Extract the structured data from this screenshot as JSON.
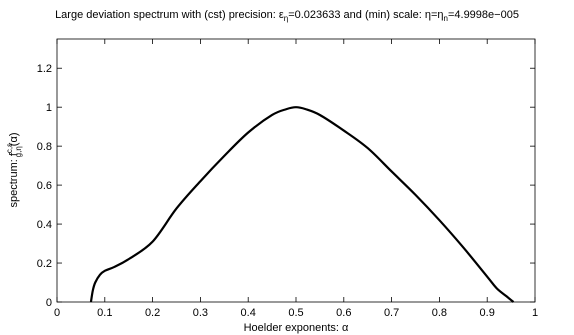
{
  "chart_data": {
    "type": "line",
    "title": {
      "prefix": "Large deviation spectrum with (cst) precision: ε",
      "eps_sub": "η",
      "mid": "=0.023633 and (min) scale: η=η",
      "eta_sub": "n",
      "suffix": "=4.9998e−005"
    },
    "xlabel": "Hoelder exponents: α",
    "ylabel": {
      "prefix": "spectrum: f",
      "sup": "c,ε",
      "sub": "g,η",
      "suffix": "(α)"
    },
    "xlim": [
      0,
      1
    ],
    "ylim": [
      0,
      1.35
    ],
    "x_ticks": [
      0,
      0.1,
      0.2,
      0.3,
      0.4,
      0.5,
      0.6,
      0.7,
      0.8,
      0.9,
      1
    ],
    "x_tick_labels": [
      "0",
      "0.1",
      "0.2",
      "0.3",
      "0.4",
      "0.5",
      "0.6",
      "0.7",
      "0.8",
      "0.9",
      "1"
    ],
    "y_ticks": [
      0,
      0.2,
      0.4,
      0.6,
      0.8,
      1,
      1.2
    ],
    "y_tick_labels": [
      "0",
      "0.2",
      "0.4",
      "0.6",
      "0.8",
      "1",
      "1.2"
    ],
    "grid": false,
    "series": [
      {
        "color": "#000000",
        "x": [
          0.071,
          0.075,
          0.08,
          0.09,
          0.1,
          0.12,
          0.15,
          0.2,
          0.25,
          0.3,
          0.35,
          0.4,
          0.45,
          0.48,
          0.5,
          0.52,
          0.55,
          0.6,
          0.65,
          0.7,
          0.75,
          0.8,
          0.85,
          0.9,
          0.92,
          0.94,
          0.95,
          0.955
        ],
        "y": [
          0.0,
          0.06,
          0.1,
          0.14,
          0.16,
          0.18,
          0.22,
          0.31,
          0.48,
          0.62,
          0.75,
          0.87,
          0.96,
          0.99,
          1.0,
          0.99,
          0.96,
          0.88,
          0.79,
          0.67,
          0.55,
          0.42,
          0.28,
          0.13,
          0.07,
          0.03,
          0.01,
          0.0
        ]
      }
    ]
  }
}
